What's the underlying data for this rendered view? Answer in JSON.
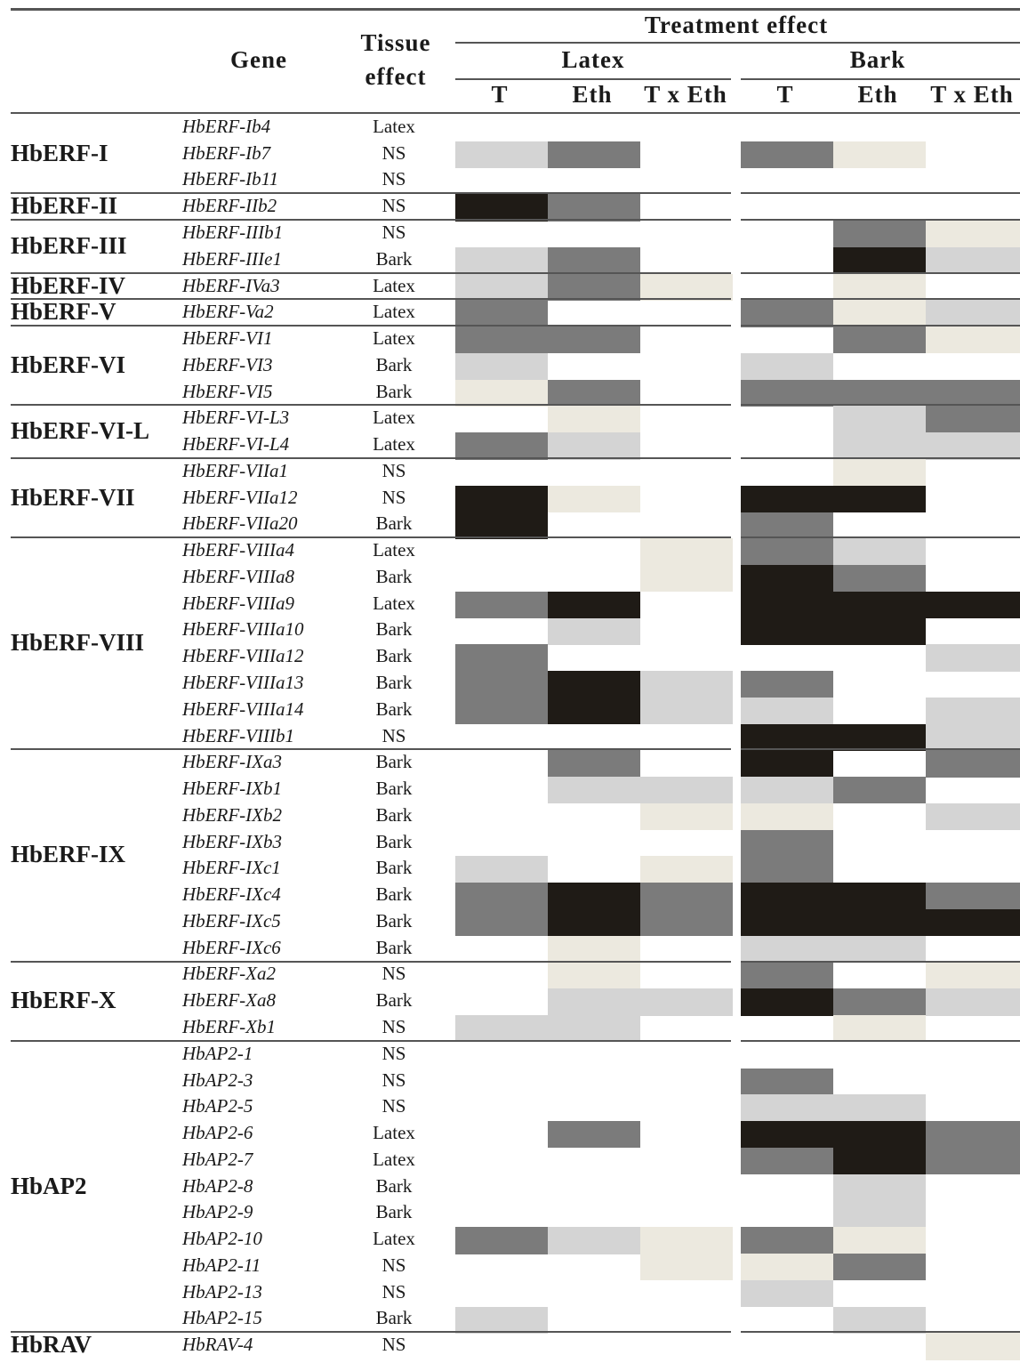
{
  "header": {
    "gene": "Gene",
    "tissue_line1": "Tissue",
    "tissue_line2": "effect",
    "treatment": "Treatment effect",
    "latex": "Latex",
    "bark": "Bark",
    "cols": [
      "T",
      "Eth",
      "T x Eth",
      "T",
      "Eth",
      "T x Eth"
    ]
  },
  "palette": {
    "1": "#ece9df",
    "2": "#d4d4d4",
    "3": "#7b7b7b",
    "4": "#1f1b16"
  },
  "groups": [
    {
      "name": "HbERF-I",
      "rows": [
        {
          "gene": "HbERF-Ib4",
          "tissue": "Latex",
          "levels": [
            0,
            0,
            0,
            0,
            0,
            0
          ]
        },
        {
          "gene": "HbERF-Ib7",
          "tissue": "NS",
          "levels": [
            2,
            3,
            0,
            3,
            1,
            0
          ]
        },
        {
          "gene": "HbERF-Ib11",
          "tissue": "NS",
          "levels": [
            0,
            0,
            0,
            0,
            0,
            0
          ]
        }
      ]
    },
    {
      "name": "HbERF-II",
      "rows": [
        {
          "gene": "HbERF-IIb2",
          "tissue": "NS",
          "levels": [
            4,
            3,
            0,
            0,
            0,
            0
          ]
        }
      ]
    },
    {
      "name": "HbERF-III",
      "rows": [
        {
          "gene": "HbERF-IIIb1",
          "tissue": "NS",
          "levels": [
            0,
            0,
            0,
            0,
            3,
            1
          ]
        },
        {
          "gene": "HbERF-IIIe1",
          "tissue": "Bark",
          "levels": [
            2,
            3,
            0,
            0,
            4,
            2
          ]
        }
      ]
    },
    {
      "name": "HbERF-IV",
      "rows": [
        {
          "gene": "HbERF-IVa3",
          "tissue": "Latex",
          "levels": [
            2,
            3,
            1,
            0,
            1,
            0
          ]
        }
      ]
    },
    {
      "name": "HbERF-V",
      "rows": [
        {
          "gene": "HbERF-Va2",
          "tissue": "Latex",
          "levels": [
            3,
            0,
            0,
            3,
            1,
            2
          ]
        }
      ]
    },
    {
      "name": "HbERF-VI",
      "rows": [
        {
          "gene": "HbERF-VI1",
          "tissue": "Latex",
          "levels": [
            3,
            3,
            0,
            0,
            3,
            1
          ]
        },
        {
          "gene": "HbERF-VI3",
          "tissue": "Bark",
          "levels": [
            2,
            0,
            0,
            2,
            0,
            0
          ]
        },
        {
          "gene": "HbERF-VI5",
          "tissue": "Bark",
          "levels": [
            1,
            3,
            0,
            3,
            3,
            3
          ]
        }
      ]
    },
    {
      "name": "HbERF-VI-L",
      "rows": [
        {
          "gene": "HbERF-VI-L3",
          "tissue": "Latex",
          "levels": [
            0,
            1,
            0,
            0,
            2,
            3
          ]
        },
        {
          "gene": "HbERF-VI-L4",
          "tissue": "Latex",
          "levels": [
            3,
            2,
            0,
            0,
            2,
            2
          ]
        }
      ]
    },
    {
      "name": "HbERF-VII",
      "rows": [
        {
          "gene": "HbERF-VIIa1",
          "tissue": "NS",
          "levels": [
            0,
            0,
            0,
            0,
            1,
            0
          ]
        },
        {
          "gene": "HbERF-VIIa12",
          "tissue": "NS",
          "levels": [
            4,
            1,
            0,
            4,
            4,
            0
          ]
        },
        {
          "gene": "HbERF-VIIa20",
          "tissue": "Bark",
          "levels": [
            4,
            0,
            0,
            3,
            0,
            0
          ]
        }
      ]
    },
    {
      "name": "HbERF-VIII",
      "rows": [
        {
          "gene": "HbERF-VIIIa4",
          "tissue": "Latex",
          "levels": [
            0,
            0,
            1,
            3,
            2,
            0
          ]
        },
        {
          "gene": "HbERF-VIIIa8",
          "tissue": "Bark",
          "levels": [
            0,
            0,
            1,
            4,
            3,
            0
          ]
        },
        {
          "gene": "HbERF-VIIIa9",
          "tissue": "Latex",
          "levels": [
            3,
            4,
            0,
            4,
            4,
            4
          ]
        },
        {
          "gene": "HbERF-VIIIa10",
          "tissue": "Bark",
          "levels": [
            0,
            2,
            0,
            4,
            4,
            0
          ]
        },
        {
          "gene": "HbERF-VIIIa12",
          "tissue": "Bark",
          "levels": [
            3,
            0,
            0,
            0,
            0,
            2
          ]
        },
        {
          "gene": "HbERF-VIIIa13",
          "tissue": "Bark",
          "levels": [
            3,
            4,
            2,
            3,
            0,
            0
          ]
        },
        {
          "gene": "HbERF-VIIIa14",
          "tissue": "Bark",
          "levels": [
            3,
            4,
            2,
            2,
            0,
            2
          ]
        },
        {
          "gene": "HbERF-VIIIb1",
          "tissue": "NS",
          "levels": [
            0,
            0,
            0,
            4,
            4,
            2
          ]
        }
      ]
    },
    {
      "name": "HbERF-IX",
      "rows": [
        {
          "gene": "HbERF-IXa3",
          "tissue": "Bark",
          "levels": [
            0,
            3,
            0,
            4,
            0,
            3
          ]
        },
        {
          "gene": "HbERF-IXb1",
          "tissue": "Bark",
          "levels": [
            0,
            2,
            2,
            2,
            3,
            0
          ]
        },
        {
          "gene": "HbERF-IXb2",
          "tissue": "Bark",
          "levels": [
            0,
            0,
            1,
            1,
            0,
            2
          ]
        },
        {
          "gene": "HbERF-IXb3",
          "tissue": "Bark",
          "levels": [
            0,
            0,
            0,
            3,
            0,
            0
          ]
        },
        {
          "gene": "HbERF-IXc1",
          "tissue": "Bark",
          "levels": [
            2,
            0,
            1,
            3,
            0,
            0
          ]
        },
        {
          "gene": "HbERF-IXc4",
          "tissue": "Bark",
          "levels": [
            3,
            4,
            3,
            4,
            4,
            3
          ]
        },
        {
          "gene": "HbERF-IXc5",
          "tissue": "Bark",
          "levels": [
            3,
            4,
            3,
            4,
            4,
            4
          ]
        },
        {
          "gene": "HbERF-IXc6",
          "tissue": "Bark",
          "levels": [
            0,
            1,
            0,
            2,
            2,
            0
          ]
        }
      ]
    },
    {
      "name": "HbERF-X",
      "rows": [
        {
          "gene": "HbERF-Xa2",
          "tissue": "NS",
          "levels": [
            0,
            1,
            0,
            3,
            0,
            1
          ]
        },
        {
          "gene": "HbERF-Xa8",
          "tissue": "Bark",
          "levels": [
            0,
            2,
            2,
            4,
            3,
            2
          ]
        },
        {
          "gene": "HbERF-Xb1",
          "tissue": "NS",
          "levels": [
            2,
            2,
            0,
            0,
            1,
            0
          ]
        }
      ]
    },
    {
      "name": "HbAP2",
      "rows": [
        {
          "gene": "HbAP2-1",
          "tissue": "NS",
          "levels": [
            0,
            0,
            0,
            0,
            0,
            0
          ]
        },
        {
          "gene": "HbAP2-3",
          "tissue": "NS",
          "levels": [
            0,
            0,
            0,
            3,
            0,
            0
          ]
        },
        {
          "gene": "HbAP2-5",
          "tissue": "NS",
          "levels": [
            0,
            0,
            0,
            2,
            2,
            0
          ]
        },
        {
          "gene": "HbAP2-6",
          "tissue": "Latex",
          "levels": [
            0,
            3,
            0,
            4,
            4,
            3
          ]
        },
        {
          "gene": "HbAP2-7",
          "tissue": "Latex",
          "levels": [
            0,
            0,
            0,
            3,
            4,
            3
          ]
        },
        {
          "gene": "HbAP2-8",
          "tissue": "Bark",
          "levels": [
            0,
            0,
            0,
            0,
            2,
            0
          ]
        },
        {
          "gene": "HbAP2-9",
          "tissue": "Bark",
          "levels": [
            0,
            0,
            0,
            0,
            2,
            0
          ]
        },
        {
          "gene": "HbAP2-10",
          "tissue": "Latex",
          "levels": [
            3,
            2,
            1,
            3,
            1,
            0
          ]
        },
        {
          "gene": "HbAP2-11",
          "tissue": "NS",
          "levels": [
            0,
            0,
            1,
            1,
            3,
            0
          ]
        },
        {
          "gene": "HbAP2-13",
          "tissue": "NS",
          "levels": [
            0,
            0,
            0,
            2,
            0,
            0
          ]
        },
        {
          "gene": "HbAP2-15",
          "tissue": "Bark",
          "levels": [
            2,
            0,
            0,
            0,
            2,
            0
          ]
        }
      ]
    },
    {
      "name": "HbRAV",
      "rows": [
        {
          "gene": "HbRAV-4",
          "tissue": "NS",
          "levels": [
            0,
            0,
            0,
            0,
            0,
            1
          ]
        }
      ]
    }
  ]
}
